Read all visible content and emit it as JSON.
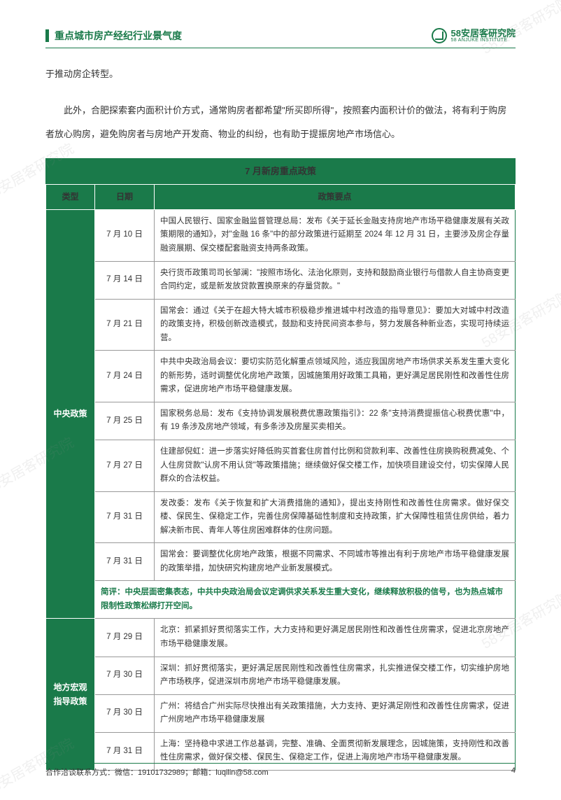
{
  "header": {
    "title": "重点城市房产经纪行业景气度",
    "logo_main": "58安居客研究院",
    "logo_sub": "58 ANJUKE INSTITUTE"
  },
  "intro": {
    "line1": "于推动房企转型。",
    "line2": "此外，合肥探索套内面积计价方式，通常购房者都希望\"所买即所得\"，按照套内面积计价的做法，将有利于购房者放心购房，避免购房者与房地产开发商、物业的纠纷，也有助于提振房地产市场信心。"
  },
  "table": {
    "title": "7 月新房重点政策",
    "headers": {
      "type": "类型",
      "date": "日期",
      "content": "政策要点"
    },
    "type1": "中央政策",
    "type2": "地方宏观指导政策",
    "rows1": [
      {
        "date": "7 月 10 日",
        "content": "中国人民银行、国家金融监督管理总局：发布《关于延长金融支持房地产市场平稳健康发展有关政策期限的通知》，对\"金融 16 条\"中的部分政策进行延期至 2024 年 12 月 31 日，主要涉及房企存量融资展期、保交楼配套融资支持两条政策。"
      },
      {
        "date": "7 月 14 日",
        "content": "央行货币政策司司长邹澜：\"按照市场化、法治化原则，支持和鼓励商业银行与借款人自主协商变更合同约定，或是新发放贷款置换原来的存量贷款。\""
      },
      {
        "date": "7 月 21 日",
        "content": "国常会：通过《关于在超大特大城市积极稳步推进城中村改造的指导意见》：要加大对城中村改造的政策支持，积极创新改造模式，鼓励和支持民间资本参与，努力发展各种新业态，实现可持续运营。"
      },
      {
        "date": "7 月 24 日",
        "content": "中共中央政治局会议：要切实防范化解重点领域风险，适应我国房地产市场供求关系发生重大变化的新形势，适时调整优化房地产政策，因城施策用好政策工具箱，更好满足居民刚性和改善性住房需求，促进房地产市场平稳健康发展。"
      },
      {
        "date": "7 月 25 日",
        "content": "国家税务总局：发布《支持协调发展税费优惠政策指引》：22 条\"支持消费提振信心税费优惠\"中，有 19 条涉及房地产领域，有多条涉及房屋买卖相关。"
      },
      {
        "date": "7 月 27 日",
        "content": "住建部倪虹：进一步落实好降低购买首套住房首付比例和贷款利率、改善性住房换购税费减免、个人住房贷款\"认房不用认贷\"等政策措施；继续做好保交楼工作，加快项目建设交付，切实保障人民群众的合法权益。"
      },
      {
        "date": "7 月 31 日",
        "content": "发改委：发布《关于恢复和扩大消费措施的通知》，提出支持刚性和改善性住房需求。做好保交楼、保民生、保稳定工作，完善住房保障基础性制度和支持政策，扩大保障性租赁住房供给，着力解决新市民、青年人等住房困难群体的住房问题。"
      },
      {
        "date": "7 月 31 日",
        "content": "国常会：要调整优化房地产政策，根据不同需求、不同城市等推出有利于房地产市场平稳健康发展的政策举措，加快研究构建房地产业新发展模式。"
      }
    ],
    "summary1": "简评：中央层面密集表态，中共中央政治局会议定调供求关系发生重大变化，继续释放积极的信号，也为热点城市限制性政策松绑打开空间。",
    "rows2": [
      {
        "date": "7 月 29 日",
        "content": "北京：抓紧抓好贯彻落实工作，大力支持和更好满足居民刚性和改善性住房需求，促进北京房地产市场平稳健康发展。"
      },
      {
        "date": "7 月 30 日",
        "content": "深圳：抓好贯彻落实，更好满足居民刚性和改善性住房需求，扎实推进保交楼工作，切实维护房地产市场秩序，促进深圳市房地产市场平稳健康发展。"
      },
      {
        "date": "7 月 30 日",
        "content": "广州：将结合广州实际尽快推出有关政策措施，大力支持、更好满足刚性和改善性住房需求，促进广州房地产市场平稳健康发展"
      },
      {
        "date": "7 月 31 日",
        "content": "上海：坚持稳中求进工作总基调，完整、准确、全面贯彻新发展理念，因城施策，支持刚性和改善性住房需求，做好保交楼、保民生、保稳定工作，促进上海房地产市场平稳健康发展。"
      }
    ]
  },
  "footer": {
    "contact": "合作洽谈联系方式：微信：19101732989；邮箱：luqilin@58.com",
    "page": "4"
  },
  "watermark": "58安居客研究院"
}
